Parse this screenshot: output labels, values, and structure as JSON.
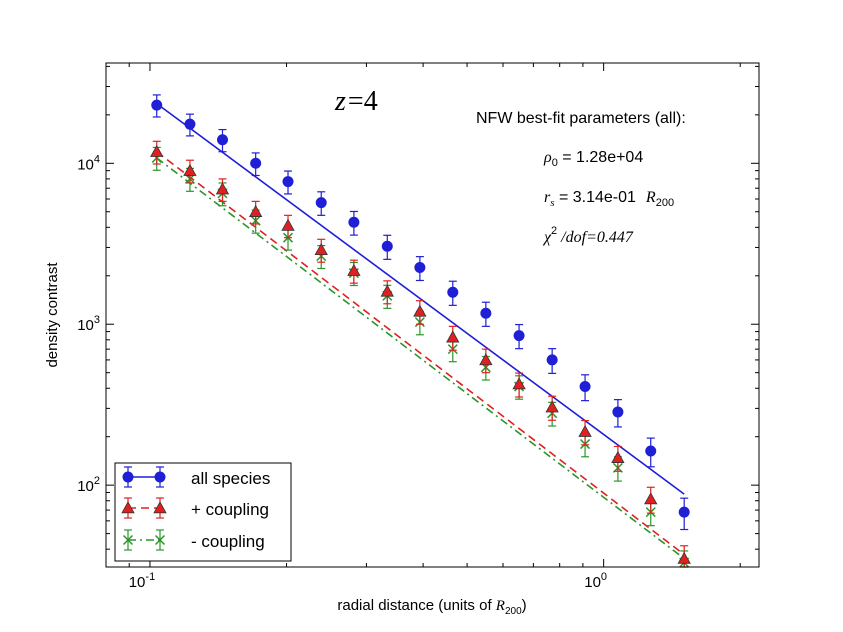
{
  "chart_data": {
    "type": "scatter",
    "title_math": {
      "var": "z",
      "eq": "=",
      "val": "4"
    },
    "xlabel_prefix": "radial distance (units of ",
    "xlabel_var": "R",
    "xlabel_sub": "200",
    "xlabel_suffix": ")",
    "ylabel": "density contrast",
    "xscale": "log",
    "yscale": "log",
    "xlim": [
      0.08,
      2.2
    ],
    "ylim": [
      31,
      42000
    ],
    "x_ticks": [
      {
        "value": 0.1,
        "base": "10",
        "exp": "-1"
      },
      {
        "value": 1.0,
        "base": "10",
        "exp": "0"
      }
    ],
    "y_ticks": [
      {
        "value": 100,
        "base": "10",
        "exp": "2"
      },
      {
        "value": 1000,
        "base": "10",
        "exp": "3"
      },
      {
        "value": 10000,
        "base": "10",
        "exp": "4"
      }
    ],
    "x": [
      0.1035,
      0.1225,
      0.1445,
      0.171,
      0.2015,
      0.2385,
      0.2815,
      0.3335,
      0.3935,
      0.465,
      0.55,
      0.651,
      0.77,
      0.91,
      1.075,
      1.27,
      1.505
    ],
    "series": [
      {
        "name": "all species",
        "marker": "circle",
        "color": "#1f1fd6",
        "values": [
          23000,
          17500,
          14000,
          10000,
          7700,
          5700,
          4300,
          3050,
          2250,
          1580,
          1170,
          850,
          600,
          410,
          285,
          163,
          68
        ],
        "errors": [
          3600,
          2700,
          2200,
          1600,
          1250,
          950,
          720,
          520,
          380,
          270,
          200,
          145,
          105,
          75,
          55,
          33,
          15
        ],
        "fit": {
          "style": "solid",
          "x": [
            0.1035,
            1.505
          ],
          "y": [
            23500,
            88
          ]
        }
      },
      {
        "name": "+ coupling",
        "marker": "triangle",
        "color": "#e02020",
        "values": [
          11800,
          9000,
          6900,
          5000,
          4100,
          2900,
          2150,
          1600,
          1200,
          830,
          600,
          425,
          305,
          215,
          148,
          82,
          35
        ],
        "errors": [
          1900,
          1450,
          1100,
          800,
          650,
          470,
          350,
          260,
          200,
          140,
          100,
          72,
          52,
          37,
          26,
          15,
          7
        ],
        "fit": {
          "style": "dashed",
          "x": [
            0.1035,
            1.505
          ],
          "y": [
            11800,
            37
          ]
        }
      },
      {
        "name": "- coupling",
        "marker": "x",
        "color": "#2a962a",
        "values": [
          10800,
          8000,
          6500,
          4400,
          3450,
          2650,
          2080,
          1500,
          1030,
          700,
          540,
          410,
          280,
          180,
          128,
          68,
          33
        ],
        "errors": [
          1750,
          1300,
          1050,
          720,
          560,
          430,
          340,
          245,
          170,
          115,
          90,
          68,
          47,
          30,
          22,
          12,
          6
        ],
        "fit": {
          "style": "dashdot",
          "x": [
            0.1035,
            1.505
          ],
          "y": [
            10800,
            35
          ]
        }
      }
    ],
    "annotations": {
      "header": "NFW best-fit parameters (all):",
      "rho_var": "ρ",
      "rho_sub": "0",
      "rho_eq": " = ",
      "rho_val": "1.28e+04",
      "rs_var": "r",
      "rs_sub": "s",
      "rs_eq": " = ",
      "rs_val": "3.14e-01",
      "rs_unit_var": "R",
      "rs_unit_sub": "200",
      "chi_var": "χ",
      "chi_sup": "2",
      "chi_text": " /dof=0.447"
    },
    "legend_position": "lower-left"
  }
}
